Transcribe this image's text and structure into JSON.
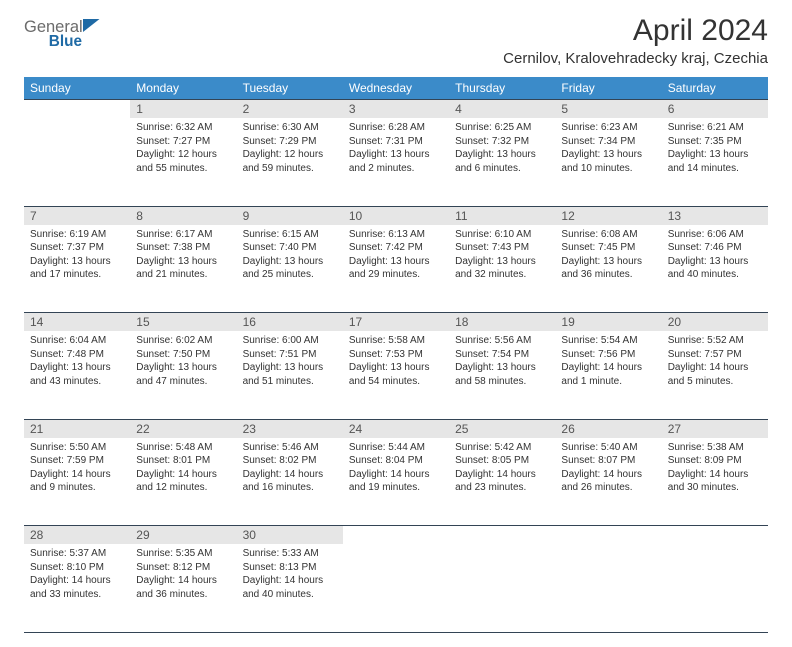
{
  "logo": {
    "text1": "General",
    "text2": "Blue",
    "color1": "#6b6b6b",
    "color2": "#1f6aa5",
    "sail": "#1f6aa5"
  },
  "header": {
    "title": "April 2024",
    "location": "Cernilov, Kralovehradecky kraj, Czechia"
  },
  "table": {
    "header_bg": "#3b8bc9",
    "border_color": "#2a3a4a",
    "daynum_bg": "#e6e6e6",
    "days": [
      "Sunday",
      "Monday",
      "Tuesday",
      "Wednesday",
      "Thursday",
      "Friday",
      "Saturday"
    ]
  },
  "weeks": [
    [
      {
        "n": "",
        "sr": "",
        "ss": "",
        "dl": ""
      },
      {
        "n": "1",
        "sr": "Sunrise: 6:32 AM",
        "ss": "Sunset: 7:27 PM",
        "dl": "Daylight: 12 hours and 55 minutes."
      },
      {
        "n": "2",
        "sr": "Sunrise: 6:30 AM",
        "ss": "Sunset: 7:29 PM",
        "dl": "Daylight: 12 hours and 59 minutes."
      },
      {
        "n": "3",
        "sr": "Sunrise: 6:28 AM",
        "ss": "Sunset: 7:31 PM",
        "dl": "Daylight: 13 hours and 2 minutes."
      },
      {
        "n": "4",
        "sr": "Sunrise: 6:25 AM",
        "ss": "Sunset: 7:32 PM",
        "dl": "Daylight: 13 hours and 6 minutes."
      },
      {
        "n": "5",
        "sr": "Sunrise: 6:23 AM",
        "ss": "Sunset: 7:34 PM",
        "dl": "Daylight: 13 hours and 10 minutes."
      },
      {
        "n": "6",
        "sr": "Sunrise: 6:21 AM",
        "ss": "Sunset: 7:35 PM",
        "dl": "Daylight: 13 hours and 14 minutes."
      }
    ],
    [
      {
        "n": "7",
        "sr": "Sunrise: 6:19 AM",
        "ss": "Sunset: 7:37 PM",
        "dl": "Daylight: 13 hours and 17 minutes."
      },
      {
        "n": "8",
        "sr": "Sunrise: 6:17 AM",
        "ss": "Sunset: 7:38 PM",
        "dl": "Daylight: 13 hours and 21 minutes."
      },
      {
        "n": "9",
        "sr": "Sunrise: 6:15 AM",
        "ss": "Sunset: 7:40 PM",
        "dl": "Daylight: 13 hours and 25 minutes."
      },
      {
        "n": "10",
        "sr": "Sunrise: 6:13 AM",
        "ss": "Sunset: 7:42 PM",
        "dl": "Daylight: 13 hours and 29 minutes."
      },
      {
        "n": "11",
        "sr": "Sunrise: 6:10 AM",
        "ss": "Sunset: 7:43 PM",
        "dl": "Daylight: 13 hours and 32 minutes."
      },
      {
        "n": "12",
        "sr": "Sunrise: 6:08 AM",
        "ss": "Sunset: 7:45 PM",
        "dl": "Daylight: 13 hours and 36 minutes."
      },
      {
        "n": "13",
        "sr": "Sunrise: 6:06 AM",
        "ss": "Sunset: 7:46 PM",
        "dl": "Daylight: 13 hours and 40 minutes."
      }
    ],
    [
      {
        "n": "14",
        "sr": "Sunrise: 6:04 AM",
        "ss": "Sunset: 7:48 PM",
        "dl": "Daylight: 13 hours and 43 minutes."
      },
      {
        "n": "15",
        "sr": "Sunrise: 6:02 AM",
        "ss": "Sunset: 7:50 PM",
        "dl": "Daylight: 13 hours and 47 minutes."
      },
      {
        "n": "16",
        "sr": "Sunrise: 6:00 AM",
        "ss": "Sunset: 7:51 PM",
        "dl": "Daylight: 13 hours and 51 minutes."
      },
      {
        "n": "17",
        "sr": "Sunrise: 5:58 AM",
        "ss": "Sunset: 7:53 PM",
        "dl": "Daylight: 13 hours and 54 minutes."
      },
      {
        "n": "18",
        "sr": "Sunrise: 5:56 AM",
        "ss": "Sunset: 7:54 PM",
        "dl": "Daylight: 13 hours and 58 minutes."
      },
      {
        "n": "19",
        "sr": "Sunrise: 5:54 AM",
        "ss": "Sunset: 7:56 PM",
        "dl": "Daylight: 14 hours and 1 minute."
      },
      {
        "n": "20",
        "sr": "Sunrise: 5:52 AM",
        "ss": "Sunset: 7:57 PM",
        "dl": "Daylight: 14 hours and 5 minutes."
      }
    ],
    [
      {
        "n": "21",
        "sr": "Sunrise: 5:50 AM",
        "ss": "Sunset: 7:59 PM",
        "dl": "Daylight: 14 hours and 9 minutes."
      },
      {
        "n": "22",
        "sr": "Sunrise: 5:48 AM",
        "ss": "Sunset: 8:01 PM",
        "dl": "Daylight: 14 hours and 12 minutes."
      },
      {
        "n": "23",
        "sr": "Sunrise: 5:46 AM",
        "ss": "Sunset: 8:02 PM",
        "dl": "Daylight: 14 hours and 16 minutes."
      },
      {
        "n": "24",
        "sr": "Sunrise: 5:44 AM",
        "ss": "Sunset: 8:04 PM",
        "dl": "Daylight: 14 hours and 19 minutes."
      },
      {
        "n": "25",
        "sr": "Sunrise: 5:42 AM",
        "ss": "Sunset: 8:05 PM",
        "dl": "Daylight: 14 hours and 23 minutes."
      },
      {
        "n": "26",
        "sr": "Sunrise: 5:40 AM",
        "ss": "Sunset: 8:07 PM",
        "dl": "Daylight: 14 hours and 26 minutes."
      },
      {
        "n": "27",
        "sr": "Sunrise: 5:38 AM",
        "ss": "Sunset: 8:09 PM",
        "dl": "Daylight: 14 hours and 30 minutes."
      }
    ],
    [
      {
        "n": "28",
        "sr": "Sunrise: 5:37 AM",
        "ss": "Sunset: 8:10 PM",
        "dl": "Daylight: 14 hours and 33 minutes."
      },
      {
        "n": "29",
        "sr": "Sunrise: 5:35 AM",
        "ss": "Sunset: 8:12 PM",
        "dl": "Daylight: 14 hours and 36 minutes."
      },
      {
        "n": "30",
        "sr": "Sunrise: 5:33 AM",
        "ss": "Sunset: 8:13 PM",
        "dl": "Daylight: 14 hours and 40 minutes."
      },
      {
        "n": "",
        "sr": "",
        "ss": "",
        "dl": ""
      },
      {
        "n": "",
        "sr": "",
        "ss": "",
        "dl": ""
      },
      {
        "n": "",
        "sr": "",
        "ss": "",
        "dl": ""
      },
      {
        "n": "",
        "sr": "",
        "ss": "",
        "dl": ""
      }
    ]
  ]
}
